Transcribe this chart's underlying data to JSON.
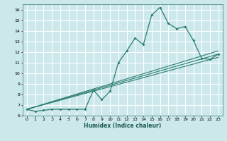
{
  "title": "",
  "xlabel": "Humidex (Indice chaleur)",
  "ylabel": "",
  "bg_color": "#cce8eb",
  "grid_color": "#ffffff",
  "line_color": "#2a7d6e",
  "xlim": [
    -0.5,
    23.5
  ],
  "ylim": [
    6,
    16.5
  ],
  "xticks": [
    0,
    1,
    2,
    3,
    4,
    5,
    6,
    7,
    8,
    9,
    10,
    11,
    12,
    13,
    14,
    15,
    16,
    17,
    18,
    19,
    20,
    21,
    22,
    23
  ],
  "yticks": [
    6,
    7,
    8,
    9,
    10,
    11,
    12,
    13,
    14,
    15,
    16
  ],
  "series": [
    {
      "x": [
        0,
        1,
        2,
        3,
        4,
        5,
        6,
        7,
        8,
        9,
        10,
        11,
        12,
        13,
        14,
        15,
        16,
        17,
        18,
        19,
        20,
        21,
        22,
        23
      ],
      "y": [
        6.6,
        6.4,
        6.5,
        6.6,
        6.6,
        6.6,
        6.6,
        6.6,
        8.4,
        7.5,
        8.3,
        11.0,
        12.1,
        13.3,
        12.7,
        15.5,
        16.2,
        14.7,
        14.2,
        14.4,
        13.1,
        11.4,
        11.3,
        11.8
      ]
    },
    {
      "x": [
        0,
        23
      ],
      "y": [
        6.6,
        11.5
      ]
    },
    {
      "x": [
        0,
        23
      ],
      "y": [
        6.6,
        11.8
      ]
    },
    {
      "x": [
        0,
        23
      ],
      "y": [
        6.6,
        12.1
      ]
    }
  ]
}
